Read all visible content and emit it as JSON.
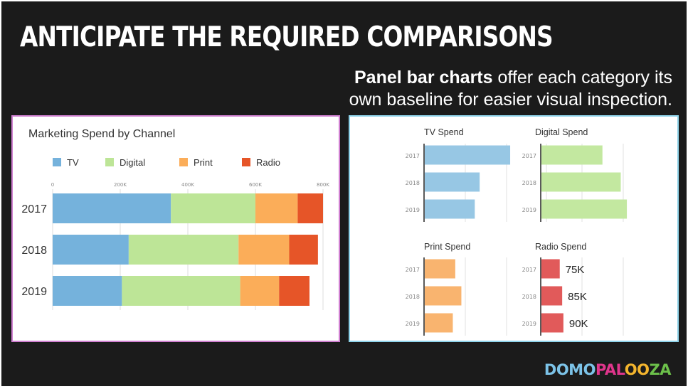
{
  "slide": {
    "title": "ANTICIPATE THE REQUIRED COMPARISONS",
    "subtitle_bold": "Panel bar charts",
    "subtitle_rest": " offer each category its own baseline for easier visual inspection."
  },
  "logo": {
    "parts": [
      {
        "text": "DOMO",
        "color": "#7cc3e8"
      },
      {
        "text": "PAL",
        "color": "#e0358c"
      },
      {
        "text": "OO",
        "color": "#f4b52e"
      },
      {
        "text": "ZA",
        "color": "#6cc04a"
      }
    ]
  },
  "colors": {
    "TV": "#75b2dc",
    "Digital": "#bde597",
    "Print": "#fbad59",
    "Radio": "#e65528",
    "tv_light": "#97c7e4",
    "digital_light": "#c3e8a0",
    "print_light": "#f9b46f",
    "radio_light": "#e15a5a",
    "left_border": "#cf7fd0",
    "right_border": "#8ed3ea"
  },
  "chart_data": [
    {
      "type": "bar",
      "orientation": "horizontal",
      "stacked": true,
      "title": "Marketing Spend by Channel",
      "categories": [
        "2017",
        "2018",
        "2019"
      ],
      "series": [
        {
          "name": "TV",
          "values": [
            350000,
            225000,
            205000
          ]
        },
        {
          "name": "Digital",
          "values": [
            250000,
            325000,
            350000
          ]
        },
        {
          "name": "Print",
          "values": [
            125000,
            150000,
            115000
          ]
        },
        {
          "name": "Radio",
          "values": [
            75000,
            85000,
            90000
          ]
        }
      ],
      "xlim": [
        0,
        800000
      ],
      "xticks": [
        "0",
        "200K",
        "400K",
        "600K",
        "800K"
      ],
      "legend": "top-left",
      "grid": true
    },
    {
      "type": "bar",
      "orientation": "horizontal",
      "panel": true,
      "categories": [
        "2017",
        "2018",
        "2019"
      ],
      "panels": [
        {
          "title": "TV Spend",
          "values": [
            350000,
            225000,
            205000
          ],
          "color_key": "tv_light",
          "max": 400000
        },
        {
          "title": "Digital Spend",
          "values": [
            250000,
            325000,
            350000
          ],
          "color_key": "digital_light",
          "max": 400000
        },
        {
          "title": "Print Spend",
          "values": [
            125000,
            150000,
            115000
          ],
          "color_key": "print_light",
          "max": 400000
        },
        {
          "title": "Radio Spend",
          "values": [
            75000,
            85000,
            90000
          ],
          "color_key": "radio_light",
          "max": 400000,
          "labels": [
            "75K",
            "85K",
            "90K"
          ]
        }
      ],
      "grid": true
    }
  ]
}
